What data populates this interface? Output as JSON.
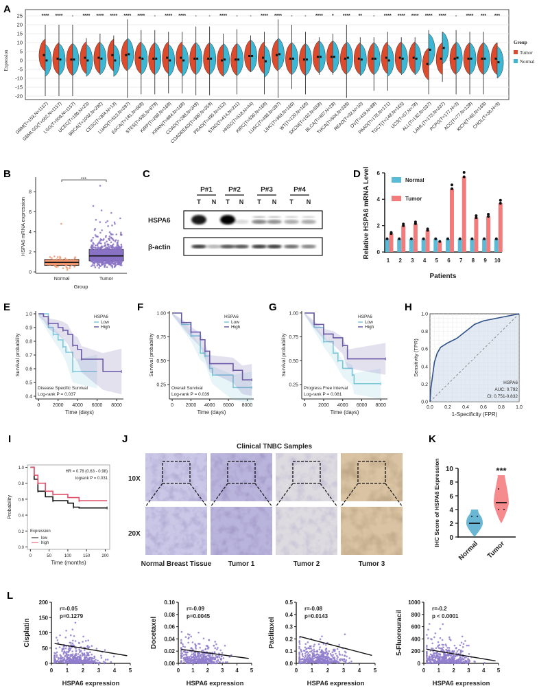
{
  "panel_labels": {
    "A": "A",
    "B": "B",
    "C": "C",
    "D": "D",
    "E": "E",
    "F": "F",
    "G": "G",
    "H": "H",
    "I": "I",
    "J": "J",
    "K": "K",
    "L": "L"
  },
  "chart_data": [
    {
      "panel": "A",
      "type": "violin",
      "ylabel": "Expression",
      "ylim": [
        -22,
        27
      ],
      "yticks": [
        25,
        20,
        15,
        10,
        5,
        0,
        -5,
        -10,
        -15,
        -20
      ],
      "grid": true,
      "legend": {
        "title": "Group",
        "entries": [
          "Tumor",
          "Normal"
        ],
        "placement": "right"
      },
      "colors": {
        "Tumor": "#dd4a2c",
        "Normal": "#3cb6d2"
      },
      "categories": [
        "GBM(T=153,N=1157)",
        "GBMLGG(T=662,N=1157)",
        "LGG(T=509,N=1157)",
        "UCEC(T=180,N=23)",
        "BRCA(T=1092,N=292)",
        "CESC(T=304,N=13)",
        "LUAD(T=513,N=397)",
        "ESCA(T=181,N=668)",
        "STES(T=595,N=879)",
        "KIRP(T=288,N=168)",
        "KIPAN(T=884,N=168)",
        "COAD(T=288,N=349)",
        "COADREAD(T=380,N=359)",
        "PRAD(T=495,N=152)",
        "STAD(T=414,N=211)",
        "HNSC(T=518,N=44)",
        "KIRC(T=530,N=168)",
        "LUSC(T=498,N=397)",
        "LIHC(T=369,N=160)",
        "WT(T=120,N=168)",
        "SKCM(T=102,N=558)",
        "BLCA(T=407,N=28)",
        "THCA(T=504,N=338)",
        "READ(T=92,N=10)",
        "OV(T=419,N=88)",
        "PAAD(T=178,N=171)",
        "TGCT(T=148,N=165)",
        "UCS(T=57,N=78)",
        "ALL(T=132,N=337)",
        "LAML(T=173,N=337)",
        "PCPG(T=177,N=3)",
        "ACC(T=77,N=128)",
        "KICH(T=66,N=168)",
        "CHOL(T=36,N=9)"
      ],
      "significance": [
        "****",
        "****",
        "-",
        "****",
        "****",
        "****",
        "****",
        "****",
        "-",
        "****",
        "****",
        "-",
        "-",
        "****",
        "-",
        "-",
        "****",
        "****",
        "-",
        "-",
        "****",
        "*",
        "****",
        "**",
        "-",
        "****",
        "****",
        "****",
        "****",
        "****",
        "-",
        "****",
        "***",
        "***"
      ],
      "tumor_median": [
        3,
        1,
        0.5,
        1.5,
        1.5,
        3,
        3,
        1.5,
        1,
        1.5,
        1.5,
        1,
        1,
        0,
        0.5,
        2.5,
        1.5,
        3,
        1,
        0.5,
        2,
        2,
        1,
        1,
        1,
        1.5,
        1.5,
        1.5,
        -2,
        1,
        1,
        1,
        1,
        1
      ],
      "normal_median": [
        0,
        0.5,
        0.5,
        0,
        1,
        0,
        3.5,
        1,
        1,
        0,
        0,
        1,
        1,
        0.5,
        0.5,
        2.5,
        -0.5,
        3.5,
        1,
        0.5,
        2,
        2,
        1.5,
        0.5,
        1,
        0,
        1,
        1,
        6,
        7,
        1.5,
        1,
        1,
        -1
      ],
      "whisker_max": [
        20,
        20,
        20,
        12.5,
        15,
        14,
        23,
        17,
        17,
        16,
        16,
        19,
        19,
        15,
        17.5,
        14,
        16,
        23,
        20,
        16,
        13,
        15,
        20,
        13,
        13,
        16,
        13,
        13,
        17,
        16,
        17,
        16,
        16,
        10
      ],
      "whisker_min": [
        -20,
        -20,
        -20,
        -7,
        -7,
        -5.5,
        -21,
        -19,
        -19,
        -18.5,
        -18.5,
        -19.5,
        -19.5,
        -9,
        -19,
        -6,
        -19,
        -21,
        -16,
        -19,
        -8,
        -8,
        -21,
        -7,
        -17,
        -17,
        -7,
        -8,
        -19,
        -12,
        -19,
        -19,
        -19,
        -5
      ]
    },
    {
      "panel": "B",
      "type": "box",
      "ylabel": "HSPA6 mRNA expression",
      "xlabel": "Group",
      "ylim": [
        0,
        9
      ],
      "yticks": [
        0,
        2,
        4,
        6,
        8
      ],
      "categories": [
        "Normal",
        "Tumor"
      ],
      "significance": "***",
      "boxes": [
        {
          "q1": 0.65,
          "median": 0.95,
          "q3": 1.25,
          "max_point": 4.8,
          "color": "#f0976f"
        },
        {
          "q1": 1.1,
          "median": 1.6,
          "q3": 2.25,
          "max_point": 8.6,
          "color": "#8a73c5"
        }
      ]
    },
    {
      "panel": "C",
      "type": "western-blot",
      "patients": [
        "P#1",
        "P#2",
        "P#3",
        "P#4"
      ],
      "lanes": [
        "T",
        "N"
      ],
      "rows": [
        {
          "label": "HSPA6",
          "band_intensity": [
            0.9,
            0,
            1,
            0.15,
            0.5,
            0.45,
            0.35,
            0.35
          ]
        },
        {
          "label": "β-actin",
          "band_intensity": [
            0.8,
            0.3,
            0.7,
            0.7,
            0.8,
            0.8,
            0.6,
            0.5
          ]
        }
      ]
    },
    {
      "panel": "D",
      "type": "bar",
      "ylabel": "Relative HSPA6 mRNA Level",
      "xlabel": "Patients",
      "ylim": [
        0,
        6
      ],
      "yticks": [
        0,
        2,
        4,
        6
      ],
      "categories": [
        "1",
        "2",
        "3",
        "4",
        "5",
        "6",
        "7",
        "8",
        "9",
        "10"
      ],
      "series": [
        {
          "name": "Normal",
          "color": "#5bbad6",
          "values": [
            1,
            1,
            1,
            1,
            1,
            1,
            1,
            1,
            1,
            1
          ]
        },
        {
          "name": "Tumor",
          "color": "#f27c7c",
          "values": [
            1.4,
            2.0,
            2.15,
            1.65,
            0.8,
            4.8,
            5.7,
            2.6,
            2.7,
            3.7
          ]
        }
      ]
    },
    {
      "panel": "E",
      "type": "line",
      "subtype": "kaplan-meier",
      "xlabel": "Time (days)",
      "ylabel": "Survival probability",
      "xlim": [
        -300,
        8700
      ],
      "ylim": [
        0.38,
        1.02
      ],
      "xticks": [
        0,
        2000,
        4000,
        6000,
        8000
      ],
      "yticks": [
        1.0,
        0.9,
        0.8,
        0.7,
        0.6,
        0.5,
        0.4
      ],
      "ytick_labels": [
        "1.0",
        "0.9",
        "0.8",
        "0.7",
        "0.6",
        "0.5",
        "0.4"
      ],
      "legend": {
        "title": "HSPA6",
        "entries": [
          "Low",
          "High"
        ],
        "placement": "top-right"
      },
      "annotation": [
        "Disease Specific Survival",
        "Log-rank  P = 0.037"
      ],
      "series": [
        {
          "name": "Low",
          "color": "#7cc6da",
          "points": [
            [
              0,
              1
            ],
            [
              1000,
              0.9
            ],
            [
              1500,
              0.85
            ],
            [
              2000,
              0.81
            ],
            [
              2500,
              0.76
            ],
            [
              2800,
              0.72
            ],
            [
              3500,
              0.58
            ],
            [
              6000,
              0.58
            ]
          ]
        },
        {
          "name": "High",
          "color": "#6a58a6",
          "points": [
            [
              0,
              1
            ],
            [
              500,
              0.98
            ],
            [
              1000,
              0.93
            ],
            [
              2000,
              0.9
            ],
            [
              2500,
              0.88
            ],
            [
              3000,
              0.85
            ],
            [
              3500,
              0.77
            ],
            [
              4000,
              0.74
            ],
            [
              4400,
              0.67
            ],
            [
              6600,
              0.58
            ],
            [
              8500,
              0.58
            ]
          ]
        }
      ]
    },
    {
      "panel": "F",
      "type": "line",
      "subtype": "kaplan-meier",
      "xlabel": "Time (days)",
      "ylabel": "Survival probability",
      "xlim": [
        -300,
        8700
      ],
      "ylim": [
        0.1,
        1.02
      ],
      "xticks": [
        0,
        2000,
        4000,
        6000,
        8000
      ],
      "yticks": [
        1.0,
        0.75,
        0.5,
        0.25
      ],
      "ytick_labels": [
        "1.00",
        "0.75",
        "0.50",
        "0.25"
      ],
      "legend": {
        "title": "HSPA6",
        "entries": [
          "Low",
          "High"
        ],
        "placement": "top-right"
      },
      "annotation": [
        "Overall Survival",
        "Log-rank  P = 0.039"
      ],
      "series": [
        {
          "name": "Low",
          "color": "#7cc6da",
          "points": [
            [
              0,
              1
            ],
            [
              1000,
              0.88
            ],
            [
              2000,
              0.76
            ],
            [
              3000,
              0.58
            ],
            [
              3500,
              0.55
            ],
            [
              4000,
              0.42
            ],
            [
              4300,
              0.35
            ],
            [
              6500,
              0.22
            ],
            [
              8500,
              0.22
            ]
          ]
        },
        {
          "name": "High",
          "color": "#6a58a6",
          "points": [
            [
              0,
              1
            ],
            [
              1000,
              0.9
            ],
            [
              2000,
              0.8
            ],
            [
              3000,
              0.72
            ],
            [
              3500,
              0.6
            ],
            [
              4000,
              0.47
            ],
            [
              6500,
              0.4
            ],
            [
              7500,
              0.3
            ],
            [
              8500,
              0.3
            ]
          ]
        }
      ]
    },
    {
      "panel": "G",
      "type": "line",
      "subtype": "kaplan-meier",
      "xlabel": "Time (days)",
      "ylabel": "Survival probability",
      "xlim": [
        -300,
        8700
      ],
      "ylim": [
        0.1,
        1.02
      ],
      "xticks": [
        0,
        2000,
        4000,
        6000,
        8000
      ],
      "yticks": [
        1.0,
        0.75,
        0.5,
        0.25
      ],
      "ytick_labels": [
        "1.00",
        "0.75",
        "0.50",
        "0.25"
      ],
      "legend": {
        "title": "HSPA6",
        "entries": [
          "Low",
          "High"
        ],
        "placement": "top-right"
      },
      "annotation": [
        "Progress Free Interval",
        "Log-rank  P = 0.081"
      ],
      "series": [
        {
          "name": "Low",
          "color": "#7cc6da",
          "points": [
            [
              0,
              1
            ],
            [
              1000,
              0.85
            ],
            [
              2000,
              0.7
            ],
            [
              3000,
              0.58
            ],
            [
              3500,
              0.5
            ],
            [
              4000,
              0.42
            ],
            [
              5000,
              0.35
            ],
            [
              5200,
              0.26
            ],
            [
              8000,
              0.26
            ]
          ]
        },
        {
          "name": "High",
          "color": "#6a58a6",
          "points": [
            [
              0,
              1
            ],
            [
              1000,
              0.88
            ],
            [
              2000,
              0.78
            ],
            [
              3000,
              0.74
            ],
            [
              4000,
              0.66
            ],
            [
              4500,
              0.52
            ],
            [
              8500,
              0.52
            ]
          ]
        }
      ]
    },
    {
      "panel": "H",
      "type": "line",
      "subtype": "roc",
      "xlabel": "1-Specificity (FPR)",
      "ylabel": "Sensitivity (TPR)",
      "xlim": [
        0,
        1
      ],
      "ylim": [
        0,
        1
      ],
      "xticks": [
        "0.0",
        "0.2",
        "0.4",
        "0.6",
        "0.8",
        "1.0"
      ],
      "yticks": [
        "0.0",
        "0.2",
        "0.4",
        "0.6",
        "0.8",
        "1.0"
      ],
      "grid": true,
      "annotation": [
        "HSPA6",
        "AUC: 0.792",
        "CI: 0.751-0.832"
      ],
      "color": "#2c4f86",
      "points": [
        [
          0,
          0
        ],
        [
          0.01,
          0.15
        ],
        [
          0.03,
          0.3
        ],
        [
          0.05,
          0.45
        ],
        [
          0.08,
          0.55
        ],
        [
          0.12,
          0.62
        ],
        [
          0.2,
          0.67
        ],
        [
          0.3,
          0.72
        ],
        [
          0.4,
          0.8
        ],
        [
          0.5,
          0.88
        ],
        [
          0.6,
          0.92
        ],
        [
          0.8,
          0.96
        ],
        [
          1,
          1
        ]
      ]
    },
    {
      "panel": "I",
      "type": "line",
      "subtype": "kaplan-meier",
      "xlabel": "Time (months)",
      "ylabel": "Probability",
      "xlim": [
        -8,
        212
      ],
      "ylim": [
        -0.03,
        1.03
      ],
      "xticks": [
        0,
        50,
        100,
        150,
        200
      ],
      "yticks": [
        0,
        0.2,
        0.4,
        0.6,
        0.8,
        1.0
      ],
      "ytick_labels": [
        "0.0",
        "0.2",
        "0.4",
        "0.6",
        "0.8",
        "1.0"
      ],
      "annotation": [
        "HR = 0.78 (0.63 - 0.98)",
        "logrank P = 0.031"
      ],
      "legend": {
        "title": "Expression",
        "entries": [
          "low",
          "high"
        ],
        "placement": "bottom-left"
      },
      "series": [
        {
          "name": "low",
          "color": "#111111",
          "points": [
            [
              0,
              1
            ],
            [
              10,
              0.85
            ],
            [
              20,
              0.7
            ],
            [
              40,
              0.63
            ],
            [
              60,
              0.58
            ],
            [
              100,
              0.55
            ],
            [
              115,
              0.5
            ],
            [
              130,
              0.49
            ],
            [
              205,
              0.49
            ]
          ]
        },
        {
          "name": "high",
          "color": "#e0506a",
          "points": [
            [
              0,
              1
            ],
            [
              10,
              0.9
            ],
            [
              20,
              0.8
            ],
            [
              40,
              0.7
            ],
            [
              60,
              0.66
            ],
            [
              100,
              0.62
            ],
            [
              130,
              0.58
            ],
            [
              205,
              0.58
            ]
          ]
        }
      ]
    },
    {
      "panel": "K",
      "type": "violin",
      "ylabel": "IHC Score of HSPA6 Expression",
      "ylim": [
        0,
        10
      ],
      "yticks": [
        0,
        2,
        4,
        6,
        8,
        10
      ],
      "categories": [
        "Normal",
        "Tumor"
      ],
      "significance": "***",
      "groups": [
        {
          "median": 2,
          "min": 0,
          "max": 4,
          "points": [
            3,
            3
          ],
          "color": "#5aaed0"
        },
        {
          "median": 5,
          "min": 2,
          "max": 9,
          "points": [
            7,
            4,
            4
          ],
          "color": "#f47e80"
        }
      ]
    },
    {
      "panel": "L",
      "type": "scatter",
      "xlabel": "HSPA6 expression",
      "xlim": [
        0,
        5
      ],
      "xticks": [
        0,
        1,
        2,
        3,
        4,
        5
      ],
      "point_color": "#8f7ccc",
      "plots": [
        {
          "ylabel": "Cisplatin",
          "ylim": [
            0,
            200
          ],
          "yticks": [
            "0",
            "50",
            "100",
            "150",
            "200"
          ],
          "r": "r=-0.05",
          "p": "p=0.1279",
          "fit": [
            [
              0.2,
              65
            ],
            [
              4.8,
              25
            ]
          ]
        },
        {
          "ylabel": "Docetaxel",
          "ylim": [
            0,
            0.1
          ],
          "yticks": [
            "0.00",
            "0.02",
            "0.04",
            "0.06",
            "0.08",
            "0.10"
          ],
          "r": "r=-0.09",
          "p": "p=0.0045",
          "fit": [
            [
              0.2,
              0.023
            ],
            [
              4.8,
              0.008
            ]
          ]
        },
        {
          "ylabel": "Paclitaxel",
          "ylim": [
            0,
            0.5
          ],
          "yticks": [
            "0.0",
            "0.1",
            "0.2",
            "0.3",
            "0.4",
            "0.5"
          ],
          "r": "r=-0.08",
          "p": "p=0.0143",
          "fit": [
            [
              0.2,
              0.22
            ],
            [
              4.8,
              0.065
            ]
          ]
        },
        {
          "ylabel": "5-Fluorouracil",
          "ylim": [
            0,
            1000
          ],
          "yticks": [
            "0",
            "200",
            "400",
            "600",
            "800",
            "1000"
          ],
          "r": "r=-0.2",
          "p": "p < 0.0001",
          "fit": [
            [
              0.2,
              230
            ],
            [
              4.8,
              40
            ]
          ]
        }
      ]
    }
  ],
  "ihc": {
    "title": "Clinical TNBC Samples",
    "magnifications": [
      "10X",
      "20X"
    ],
    "columns": [
      {
        "label": "Normal Breast Tissue",
        "tint": "#c9c6e6"
      },
      {
        "label": "Tumor 1",
        "tint": "#b9b4dc"
      },
      {
        "label": "Tumor 2",
        "tint": "#dddbe0"
      },
      {
        "label": "Tumor 3",
        "tint": "#d9c3a2"
      }
    ]
  }
}
